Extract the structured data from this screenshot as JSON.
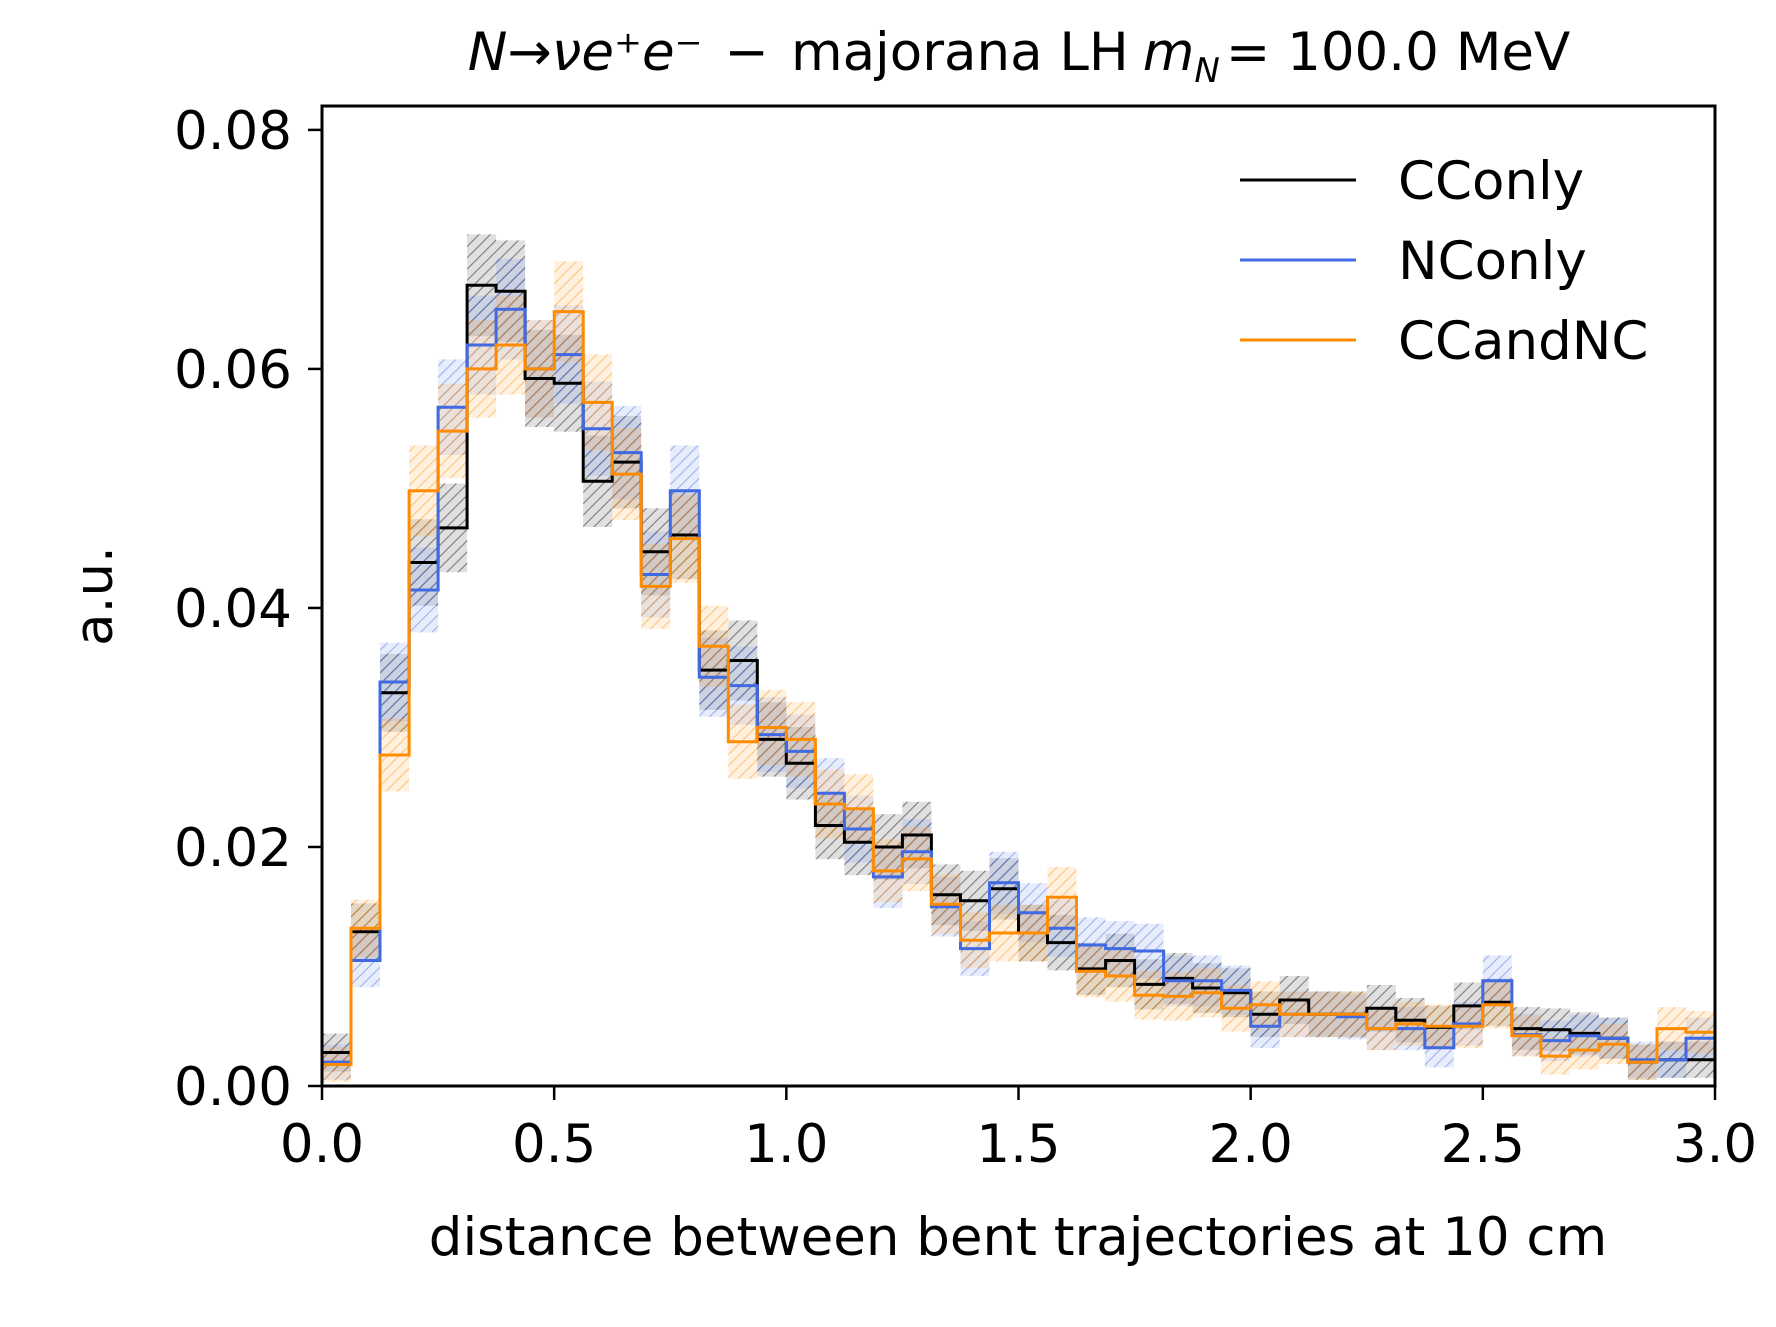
{
  "chart_data": {
    "type": "step-histogram",
    "title_parts": {
      "main": "N→νe⁺e⁻",
      "sep": "−",
      "mid": "majorana LH",
      "mass_sym": "m",
      "mass_sub": "N",
      "mass_val": "= 100.0 MeV"
    },
    "xlabel": "distance between bent trajectories at 10 cm",
    "ylabel": "a.u.",
    "xlim": [
      0,
      3.0
    ],
    "ylim": [
      0,
      0.082
    ],
    "xticks": [
      0.0,
      0.5,
      1.0,
      1.5,
      2.0,
      2.5,
      3.0
    ],
    "xtick_labels": [
      "0.0",
      "0.5",
      "1.0",
      "1.5",
      "2.0",
      "2.5",
      "3.0"
    ],
    "yticks": [
      0.0,
      0.02,
      0.04,
      0.06,
      0.08
    ],
    "ytick_labels": [
      "0.00",
      "0.02",
      "0.04",
      "0.06",
      "0.08"
    ],
    "bins": 48,
    "bin_width": 0.0625,
    "legend_position": "top-right",
    "series": [
      {
        "name": "CConly",
        "color": "#000000",
        "values": [
          0.0028,
          0.0129,
          0.0329,
          0.0438,
          0.0467,
          0.067,
          0.0665,
          0.0592,
          0.0588,
          0.0506,
          0.0522,
          0.0447,
          0.0461,
          0.0348,
          0.0356,
          0.029,
          0.027,
          0.0218,
          0.0204,
          0.02,
          0.021,
          0.016,
          0.0155,
          0.0165,
          0.0128,
          0.012,
          0.0098,
          0.0105,
          0.0085,
          0.009,
          0.0082,
          0.0078,
          0.006,
          0.0072,
          0.006,
          0.006,
          0.0065,
          0.0055,
          0.0049,
          0.0067,
          0.007,
          0.0048,
          0.0047,
          0.0044,
          0.004,
          0.002,
          0.0022,
          0.0022
        ]
      },
      {
        "name": "NConly",
        "color": "#4169e1",
        "values": [
          0.002,
          0.0105,
          0.0338,
          0.0415,
          0.0568,
          0.062,
          0.065,
          0.06,
          0.0612,
          0.055,
          0.053,
          0.0428,
          0.0498,
          0.0342,
          0.0335,
          0.0294,
          0.028,
          0.0245,
          0.0215,
          0.0175,
          0.0196,
          0.015,
          0.0115,
          0.017,
          0.0145,
          0.0132,
          0.0118,
          0.0115,
          0.0113,
          0.0088,
          0.0088,
          0.008,
          0.005,
          0.006,
          0.006,
          0.0058,
          0.0048,
          0.0048,
          0.0032,
          0.0052,
          0.0088,
          0.0043,
          0.0038,
          0.0042,
          0.004,
          0.0022,
          0.0022,
          0.004
        ]
      },
      {
        "name": "CCandNC",
        "color": "#ff8c00",
        "values": [
          0.0018,
          0.0132,
          0.0277,
          0.0498,
          0.0548,
          0.06,
          0.062,
          0.06,
          0.0648,
          0.0572,
          0.0512,
          0.0418,
          0.0458,
          0.0368,
          0.0288,
          0.03,
          0.029,
          0.0236,
          0.0232,
          0.018,
          0.019,
          0.0152,
          0.0122,
          0.0128,
          0.0128,
          0.0158,
          0.0096,
          0.0092,
          0.0076,
          0.0075,
          0.0078,
          0.0065,
          0.0068,
          0.006,
          0.006,
          0.006,
          0.0048,
          0.0052,
          0.005,
          0.005,
          0.0068,
          0.0042,
          0.0025,
          0.003,
          0.0035,
          0.002,
          0.0048,
          0.0045
        ]
      }
    ]
  }
}
